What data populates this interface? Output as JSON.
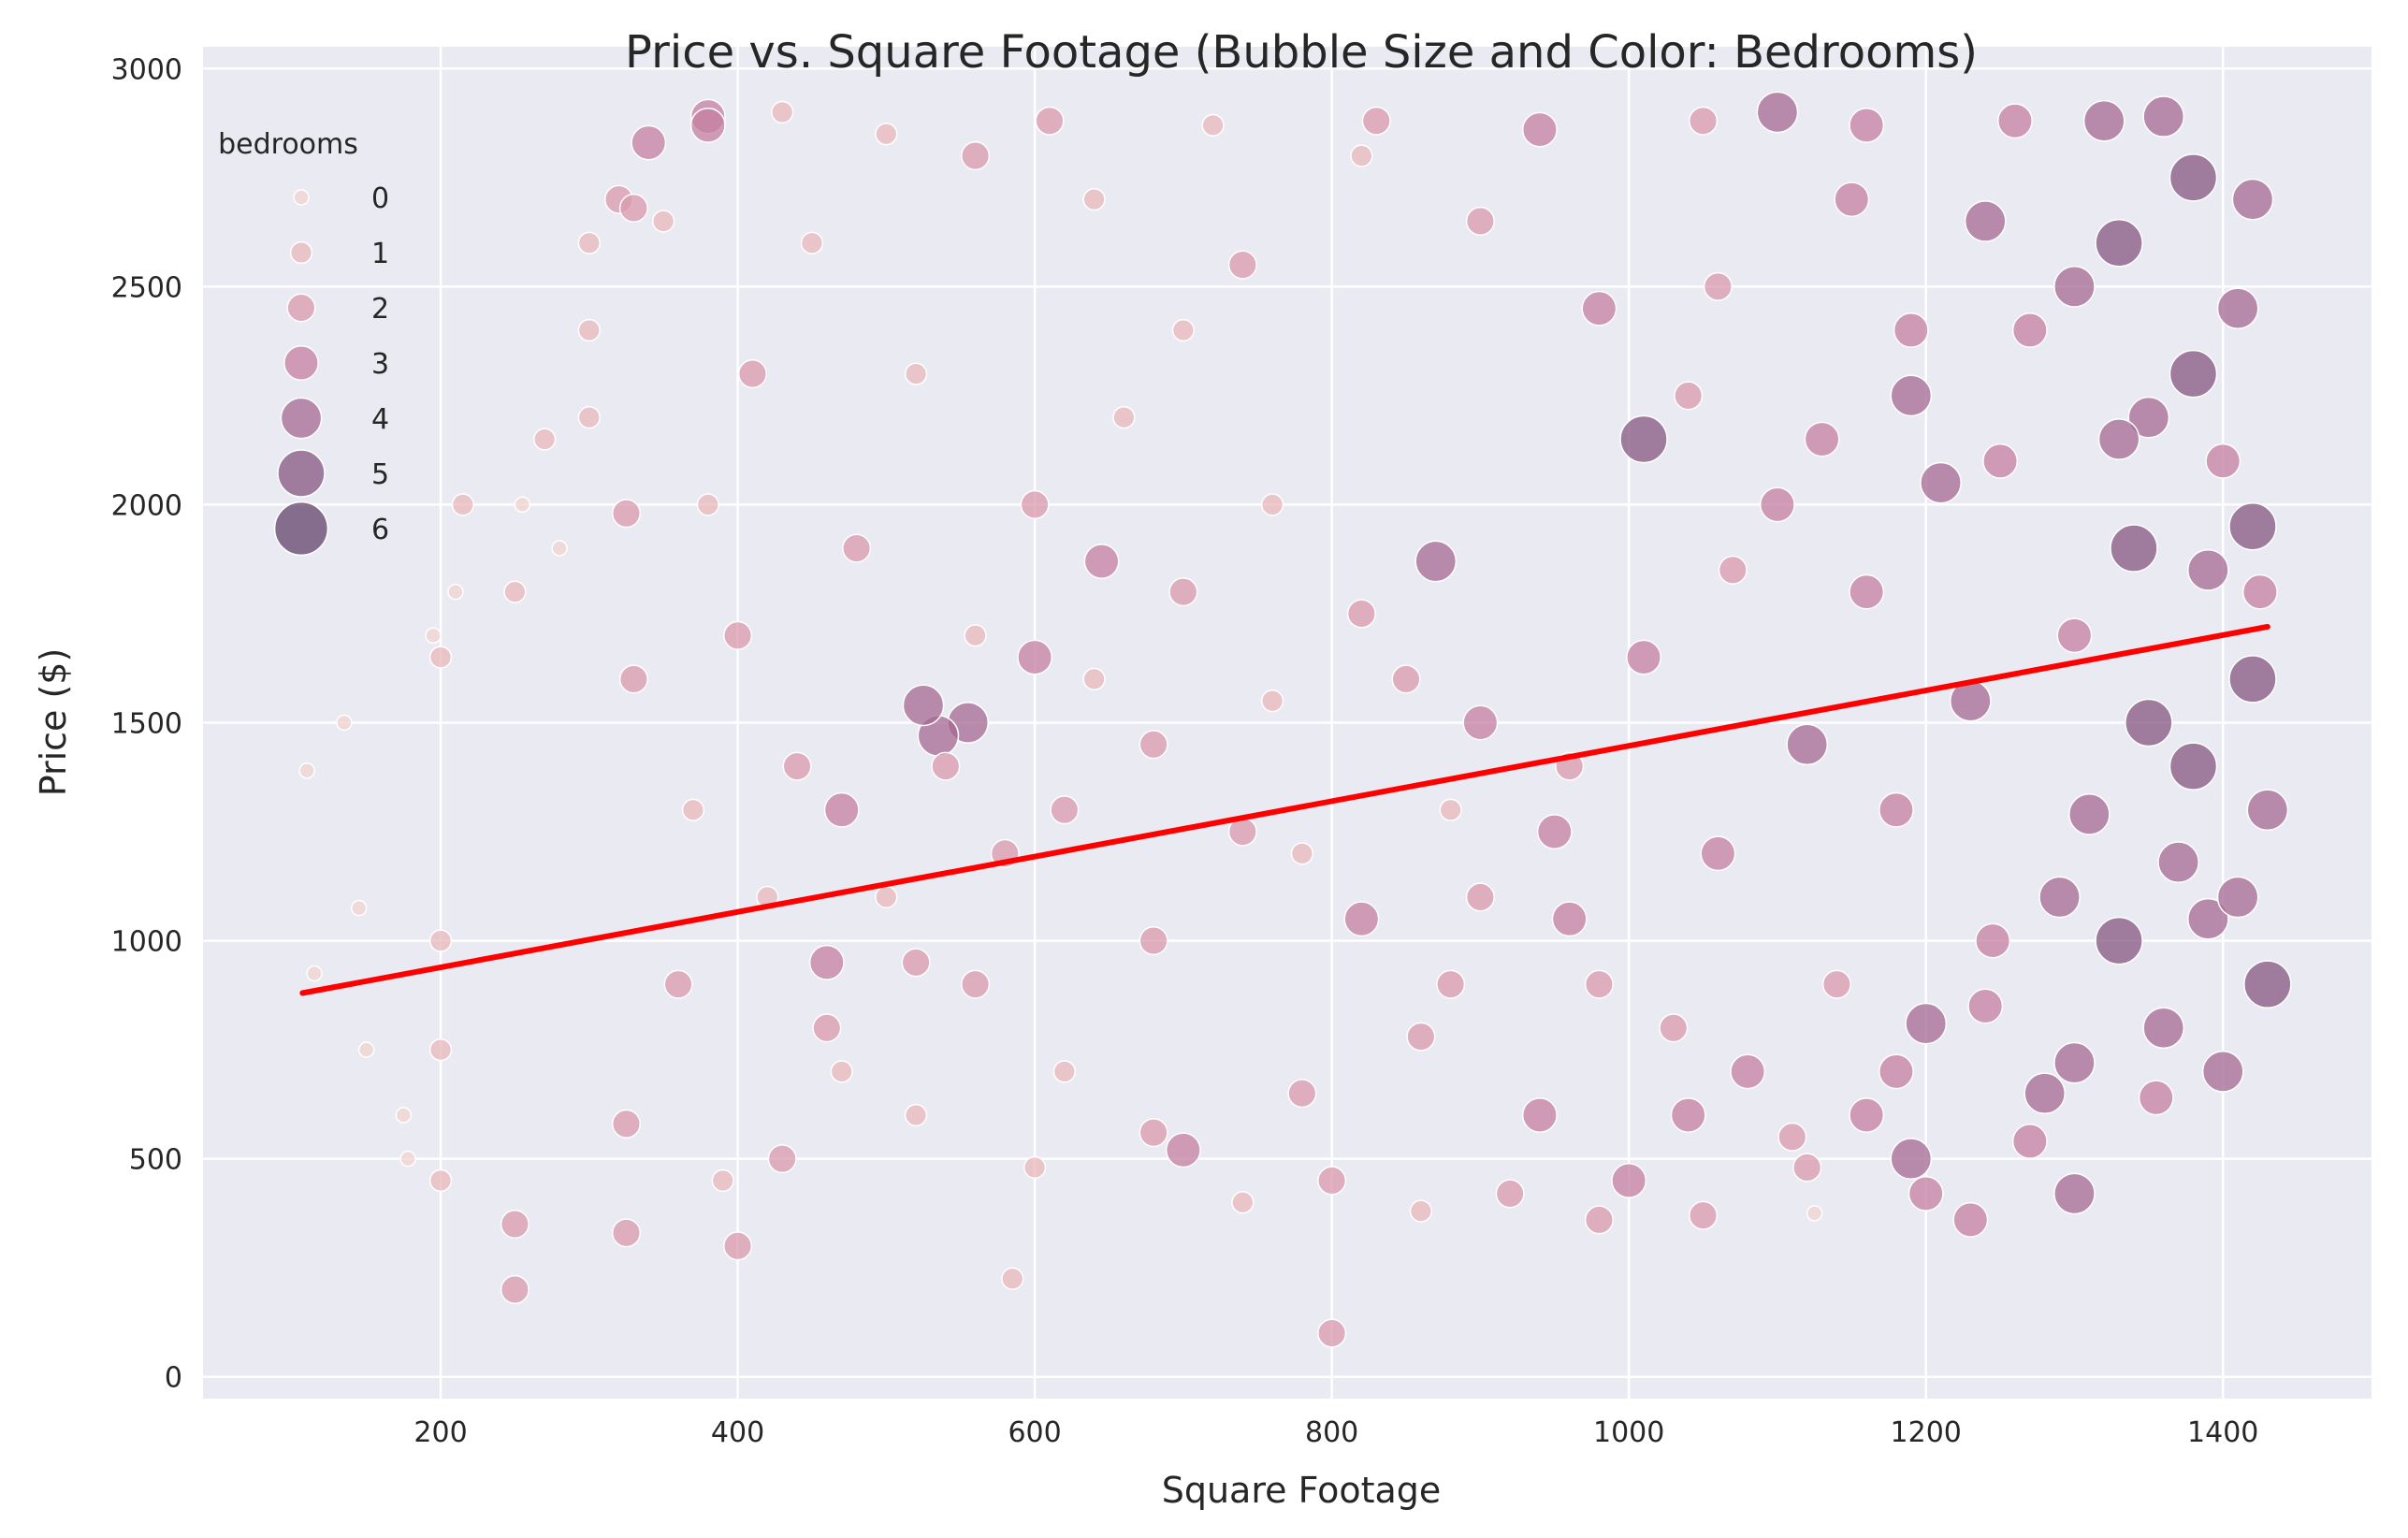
{
  "chart_data": {
    "type": "scatter",
    "title": "Price vs. Square Footage (Bubble Size and Color: Bedrooms)",
    "xlabel": "Square Footage",
    "ylabel": "Price ($)",
    "xlim": [
      40,
      1500
    ],
    "ylim": [
      -50,
      3050
    ],
    "xticks": [
      200,
      400,
      600,
      800,
      1000,
      1200,
      1400
    ],
    "yticks": [
      0,
      500,
      1000,
      1500,
      2000,
      2500,
      3000
    ],
    "grid": true,
    "legend": {
      "title": "bedrooms",
      "placement": "top-left",
      "entries": [
        "0",
        "1",
        "2",
        "3",
        "4",
        "5",
        "6"
      ]
    },
    "colors": {
      "background": "#eaeaf2",
      "grid": "#ffffff",
      "trend": "#ff0000",
      "bedroom_palette": [
        "#f0d3d0",
        "#e8b8bc",
        "#d99aad",
        "#c47fa0",
        "#a66891",
        "#865580",
        "#63446b"
      ]
    },
    "trend_line": {
      "x": [
        107,
        1430
      ],
      "y": [
        880,
        1720
      ]
    },
    "points": [
      [
        110,
        1390,
        0
      ],
      [
        135,
        1500,
        0
      ],
      [
        150,
        750,
        0
      ],
      [
        145,
        1075,
        0
      ],
      [
        115,
        925,
        0
      ],
      [
        200,
        1650,
        1
      ],
      [
        200,
        1000,
        1
      ],
      [
        200,
        750,
        1
      ],
      [
        200,
        450,
        1
      ],
      [
        195,
        1700,
        0
      ],
      [
        210,
        1800,
        0
      ],
      [
        215,
        2000,
        1
      ],
      [
        178,
        500,
        0
      ],
      [
        175,
        600,
        0
      ],
      [
        250,
        200,
        2
      ],
      [
        250,
        350,
        2
      ],
      [
        250,
        1800,
        1
      ],
      [
        255,
        2000,
        0
      ],
      [
        270,
        2150,
        1
      ],
      [
        280,
        1900,
        0
      ],
      [
        300,
        2600,
        1
      ],
      [
        300,
        2400,
        1
      ],
      [
        300,
        2200,
        1
      ],
      [
        320,
        2700,
        2
      ],
      [
        340,
        2830,
        3
      ],
      [
        330,
        2680,
        2
      ],
      [
        380,
        2890,
        3
      ],
      [
        380,
        2870,
        3
      ],
      [
        350,
        2650,
        1
      ],
      [
        325,
        1980,
        2
      ],
      [
        330,
        1600,
        2
      ],
      [
        325,
        580,
        2
      ],
      [
        325,
        330,
        2
      ],
      [
        400,
        300,
        2
      ],
      [
        430,
        2900,
        1
      ],
      [
        1100,
        2900,
        4
      ],
      [
        1010,
        2150,
        5
      ],
      [
        1190,
        2250,
        4
      ],
      [
        1330,
        2600,
        5
      ],
      [
        1300,
        420,
        4
      ],
      [
        1230,
        360,
        3
      ],
      [
        1190,
        500,
        4
      ],
      [
        1330,
        1000,
        5
      ],
      [
        1390,
        1050,
        4
      ],
      [
        800,
        100,
        2
      ],
      [
        585,
        225,
        1
      ],
      [
        555,
        1500,
        4
      ],
      [
        535,
        1470,
        4
      ],
      [
        525,
        1540,
        4
      ],
      [
        645,
        1870,
        3
      ],
      [
        1120,
        1450,
        4
      ],
      [
        870,
        1870,
        4
      ],
      [
        460,
        950,
        3
      ],
      [
        1125,
        375,
        0
      ],
      [
        1050,
        370,
        2
      ],
      [
        1200,
        810,
        4
      ],
      [
        1245,
        1000,
        3
      ],
      [
        1400,
        700,
        4
      ],
      [
        1310,
        1290,
        4
      ],
      [
        1420,
        1600,
        5
      ],
      [
        1380,
        2300,
        5
      ],
      [
        1250,
        2100,
        3
      ],
      [
        1150,
        2700,
        3
      ],
      [
        1060,
        2500,
        2
      ],
      [
        1320,
        2880,
        4
      ],
      [
        1380,
        2750,
        5
      ],
      [
        1410,
        2450,
        4
      ],
      [
        1350,
        2200,
        4
      ],
      [
        1420,
        1950,
        5
      ],
      [
        1425,
        1800,
        3
      ],
      [
        1300,
        1700,
        3
      ],
      [
        1230,
        1550,
        4
      ],
      [
        1180,
        1300,
        3
      ],
      [
        1370,
        1180,
        4
      ],
      [
        1430,
        900,
        5
      ],
      [
        1430,
        1300,
        4
      ],
      [
        1160,
        600,
        3
      ],
      [
        1270,
        540,
        3
      ],
      [
        1355,
        640,
        3
      ],
      [
        1300,
        720,
        4
      ],
      [
        980,
        900,
        2
      ],
      [
        900,
        1100,
        2
      ],
      [
        850,
        1600,
        2
      ],
      [
        760,
        2000,
        1
      ],
      [
        700,
        2400,
        1
      ],
      [
        640,
        2700,
        1
      ],
      [
        560,
        2800,
        2
      ],
      [
        520,
        2300,
        1
      ],
      [
        480,
        1900,
        2
      ],
      [
        440,
        1400,
        2
      ],
      [
        420,
        1100,
        1
      ],
      [
        460,
        800,
        2
      ],
      [
        520,
        600,
        1
      ],
      [
        600,
        480,
        1
      ],
      [
        700,
        520,
        3
      ],
      [
        780,
        650,
        2
      ],
      [
        860,
        780,
        2
      ],
      [
        940,
        600,
        3
      ],
      [
        1000,
        450,
        3
      ],
      [
        1080,
        700,
        3
      ],
      [
        1140,
        900,
        2
      ],
      [
        1060,
        1200,
        3
      ],
      [
        960,
        1400,
        2
      ],
      [
        880,
        1300,
        1
      ],
      [
        780,
        1200,
        1
      ],
      [
        680,
        1000,
        2
      ],
      [
        620,
        1300,
        2
      ],
      [
        560,
        1700,
        1
      ],
      [
        600,
        2000,
        2
      ],
      [
        660,
        2200,
        1
      ],
      [
        740,
        2550,
        2
      ],
      [
        820,
        2800,
        1
      ],
      [
        900,
        2650,
        2
      ],
      [
        980,
        2450,
        3
      ],
      [
        1040,
        2250,
        2
      ],
      [
        1100,
        2000,
        3
      ],
      [
        1160,
        1800,
        3
      ],
      [
        1210,
        2050,
        4
      ],
      [
        1270,
        2400,
        3
      ],
      [
        1330,
        2150,
        4
      ],
      [
        1390,
        1850,
        4
      ],
      [
        1350,
        1500,
        5
      ],
      [
        1290,
        1100,
        4
      ],
      [
        1240,
        850,
        3
      ],
      [
        1180,
        700,
        3
      ],
      [
        1110,
        550,
        2
      ],
      [
        1030,
        800,
        2
      ],
      [
        960,
        1050,
        3
      ],
      [
        900,
        1500,
        3
      ],
      [
        820,
        1750,
        2
      ],
      [
        760,
        1550,
        1
      ],
      [
        700,
        1800,
        2
      ],
      [
        640,
        1600,
        1
      ],
      [
        580,
        1200,
        2
      ],
      [
        520,
        950,
        2
      ],
      [
        470,
        700,
        1
      ],
      [
        430,
        500,
        2
      ],
      [
        390,
        450,
        1
      ],
      [
        360,
        900,
        2
      ],
      [
        370,
        1300,
        1
      ],
      [
        400,
        1700,
        2
      ],
      [
        380,
        2000,
        1
      ],
      [
        410,
        2300,
        2
      ],
      [
        450,
        2600,
        1
      ],
      [
        500,
        2850,
        1
      ],
      [
        610,
        2880,
        2
      ],
      [
        720,
        2870,
        1
      ],
      [
        830,
        2880,
        2
      ],
      [
        940,
        2860,
        3
      ],
      [
        1050,
        2880,
        2
      ],
      [
        1160,
        2870,
        3
      ],
      [
        1260,
        2880,
        3
      ],
      [
        1360,
        2890,
        4
      ],
      [
        1420,
        2700,
        4
      ],
      [
        1400,
        2100,
        3
      ],
      [
        1380,
        1400,
        5
      ],
      [
        1410,
        1100,
        4
      ],
      [
        1360,
        800,
        4
      ],
      [
        1280,
        650,
        4
      ],
      [
        1200,
        420,
        3
      ],
      [
        1120,
        480,
        2
      ],
      [
        1040,
        600,
        3
      ],
      [
        980,
        360,
        2
      ],
      [
        920,
        420,
        2
      ],
      [
        860,
        380,
        1
      ],
      [
        800,
        450,
        2
      ],
      [
        740,
        400,
        1
      ],
      [
        680,
        560,
        2
      ],
      [
        620,
        700,
        1
      ],
      [
        560,
        900,
        2
      ],
      [
        500,
        1100,
        1
      ],
      [
        470,
        1300,
        3
      ],
      [
        540,
        1400,
        2
      ],
      [
        600,
        1650,
        3
      ],
      [
        680,
        1450,
        2
      ],
      [
        740,
        1250,
        2
      ],
      [
        820,
        1050,
        3
      ],
      [
        880,
        900,
        2
      ],
      [
        950,
        1250,
        3
      ],
      [
        1010,
        1650,
        3
      ],
      [
        1070,
        1850,
        2
      ],
      [
        1130,
        2150,
        3
      ],
      [
        1190,
        2400,
        3
      ],
      [
        1240,
        2650,
        4
      ],
      [
        1300,
        2500,
        4
      ],
      [
        1340,
        1900,
        5
      ]
    ]
  }
}
